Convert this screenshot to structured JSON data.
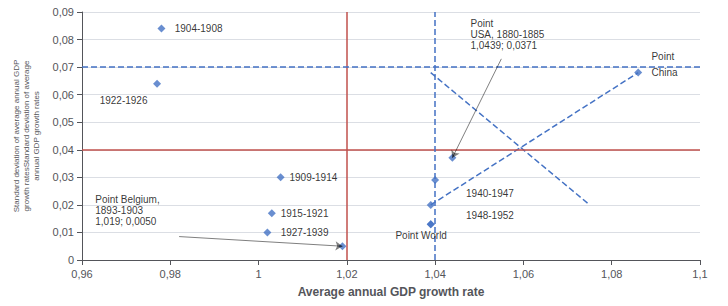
{
  "chart_data": {
    "type": "scatter",
    "xlabel": "Average annual GDP growth rate",
    "ylabel": "Standard deviation of average annual GDP\ngrowth ratesStandard deviation of average\nannual GDP growth rates",
    "xlim": [
      0.96,
      1.1
    ],
    "ylim": [
      0,
      0.09
    ],
    "xticks": [
      {
        "value": 0.96,
        "label": "0,96"
      },
      {
        "value": 0.98,
        "label": "0,98"
      },
      1,
      {
        "value": 1.02,
        "label": "1,02"
      },
      {
        "value": 1.04,
        "label": "1,04"
      },
      {
        "value": 1.06,
        "label": "1,06"
      },
      {
        "value": 1.08,
        "label": "1,08"
      },
      {
        "value": 1.1,
        "label": "1,1"
      }
    ],
    "yticks": [
      0,
      {
        "value": 0.01,
        "label": "0,01"
      },
      {
        "value": 0.02,
        "label": "0,02"
      },
      {
        "value": 0.03,
        "label": "0,03"
      },
      {
        "value": 0.04,
        "label": "0,04"
      },
      {
        "value": 0.05,
        "label": "0,05"
      },
      {
        "value": 0.06,
        "label": "0,06"
      },
      {
        "value": 0.07,
        "label": "0,07"
      },
      {
        "value": 0.08,
        "label": "0,08"
      },
      {
        "value": 0.09,
        "label": "0,09"
      }
    ],
    "grid": true,
    "series": [
      {
        "type": "scatter",
        "marker": "diamond",
        "color": "#4472C4",
        "x": [
          0.978,
          0.977,
          1.005,
          1.003,
          1.002,
          1.04,
          1.039,
          1.039,
          1.019,
          1.0439,
          1.039,
          1.086
        ],
        "values": [
          0.084,
          0.064,
          0.03,
          0.017,
          0.01,
          0.029,
          0.02,
          0.013,
          0.005,
          0.0371,
          0.013,
          0.068
        ]
      },
      {
        "type": "line",
        "line_style": "dashed",
        "color": "#4472C4",
        "x": [
          1.039,
          1.075
        ],
        "values": [
          0.068,
          0.02
        ]
      },
      {
        "type": "line",
        "line_style": "dashed",
        "color": "#4472C4",
        "x": [
          1.039,
          1.086
        ],
        "values": [
          0.02,
          0.068
        ]
      }
    ],
    "reference_lines": [
      {
        "axis": "y",
        "value": 0.037,
        "color": "#C0504D",
        "line_style": "solid"
      },
      {
        "axis": "x",
        "value": 1.019,
        "color": "#C0504D",
        "line_style": "solid"
      },
      {
        "axis": "y",
        "value": 0.068,
        "color": "#4472C4",
        "line_style": "dashed"
      },
      {
        "axis": "x",
        "value": 1.039,
        "color": "#4472C4",
        "line_style": "dashed"
      }
    ],
    "annotations": [
      {
        "text": "1904-1908",
        "x": 0.981,
        "y": 0.084
      },
      {
        "text": "1922-1926",
        "x": 0.964,
        "y": 0.058
      },
      {
        "text": "1909-1914",
        "x": 1.007,
        "y": 0.03
      },
      {
        "text": "1915-1921",
        "x": 1.005,
        "y": 0.017
      },
      {
        "text": "1927-1939",
        "x": 1.005,
        "y": 0.01
      },
      {
        "text": "1940-1947",
        "x": 1.047,
        "y": 0.024
      },
      {
        "text": "1948-1952",
        "x": 1.047,
        "y": 0.016
      },
      {
        "text": "Point Belgium,",
        "x": 0.963,
        "y": 0.022
      },
      {
        "text": "1893-1903",
        "x": 0.963,
        "y": 0.018
      },
      {
        "text": "1,019; 0,0050",
        "x": 0.963,
        "y": 0.014
      },
      {
        "text": "Point",
        "x": 1.048,
        "y": 0.086
      },
      {
        "text": "USA, 1880-1885",
        "x": 1.048,
        "y": 0.082
      },
      {
        "text": "1,0439; 0,0371",
        "x": 1.048,
        "y": 0.078
      },
      {
        "text": "Point World",
        "x": 1.031,
        "y": 0.009
      },
      {
        "text": "Point",
        "x": 1.089,
        "y": 0.074
      },
      {
        "text": "China",
        "x": 1.089,
        "y": 0.068
      }
    ],
    "arrows": [
      {
        "from": [
          0.982,
          0.0085
        ],
        "to": [
          1.019,
          0.005
        ]
      },
      {
        "from": [
          1.055,
          0.073
        ],
        "to": [
          1.0439,
          0.0371
        ]
      }
    ]
  }
}
